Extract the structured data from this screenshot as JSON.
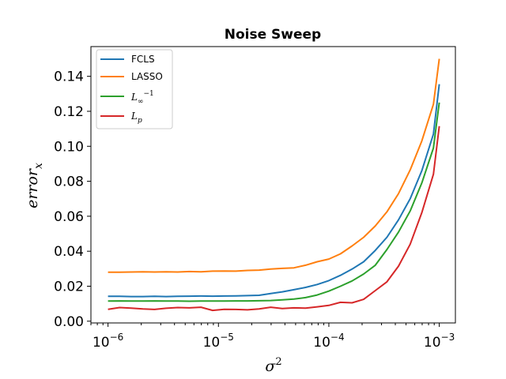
{
  "chart_data": {
    "type": "line",
    "title": "Noise Sweep",
    "xlabel": "σ²",
    "ylabel": "error_x",
    "xscale": "log",
    "xlim": [
      7e-07,
      0.0014
    ],
    "ylim": [
      -0.001,
      0.157
    ],
    "x_ticks": [
      {
        "value": 1e-06,
        "base": "10",
        "exp": "−6"
      },
      {
        "value": 1e-05,
        "base": "10",
        "exp": "−5"
      },
      {
        "value": 0.0001,
        "base": "10",
        "exp": "−4"
      },
      {
        "value": 0.001,
        "base": "10",
        "exp": "−3"
      }
    ],
    "y_ticks": [
      {
        "value": 0.0,
        "label": "0.00"
      },
      {
        "value": 0.02,
        "label": "0.02"
      },
      {
        "value": 0.04,
        "label": "0.04"
      },
      {
        "value": 0.06,
        "label": "0.06"
      },
      {
        "value": 0.08,
        "label": "0.08"
      },
      {
        "value": 0.1,
        "label": "0.10"
      },
      {
        "value": 0.12,
        "label": "0.12"
      },
      {
        "value": 0.14,
        "label": "0.14"
      }
    ],
    "grid": false,
    "legend_position": "top-left",
    "x": [
      1e-06,
      1.274e-06,
      1.624e-06,
      2.069e-06,
      2.637e-06,
      3.36e-06,
      4.281e-06,
      5.456e-06,
      6.952e-06,
      8.859e-06,
      1.129e-05,
      1.438e-05,
      1.833e-05,
      2.336e-05,
      2.976e-05,
      3.793e-05,
      4.833e-05,
      6.158e-05,
      7.848e-05,
      0.0001,
      0.0001274,
      0.0001624,
      0.0002069,
      0.0002637,
      0.000336,
      0.0004281,
      0.0005456,
      0.0006952,
      0.0008859,
      0.001
    ],
    "series": [
      {
        "name": "FCLS",
        "color": "#1f77b4",
        "values": [
          0.0142,
          0.0142,
          0.0141,
          0.0141,
          0.0142,
          0.0141,
          0.0142,
          0.0143,
          0.0144,
          0.0143,
          0.0144,
          0.0145,
          0.0146,
          0.0148,
          0.0158,
          0.0168,
          0.018,
          0.0193,
          0.021,
          0.0232,
          0.0262,
          0.0298,
          0.034,
          0.0405,
          0.048,
          0.058,
          0.07,
          0.086,
          0.107,
          0.1355
        ]
      },
      {
        "name": "LASSO",
        "color": "#ff7f0e",
        "values": [
          0.028,
          0.028,
          0.0281,
          0.0282,
          0.0281,
          0.0282,
          0.0281,
          0.0284,
          0.0282,
          0.0286,
          0.0287,
          0.0286,
          0.029,
          0.0292,
          0.0298,
          0.0302,
          0.0305,
          0.032,
          0.034,
          0.0355,
          0.0385,
          0.043,
          0.048,
          0.0545,
          0.0625,
          0.073,
          0.0865,
          0.103,
          0.124,
          0.15
        ]
      },
      {
        "name": "L_∞^{-1}",
        "color": "#2ca02c",
        "values": [
          0.0115,
          0.0116,
          0.0115,
          0.0115,
          0.0116,
          0.0115,
          0.0115,
          0.0114,
          0.0115,
          0.0115,
          0.0115,
          0.0116,
          0.0116,
          0.0117,
          0.0118,
          0.0122,
          0.0127,
          0.0135,
          0.015,
          0.0172,
          0.02,
          0.023,
          0.027,
          0.032,
          0.041,
          0.051,
          0.063,
          0.079,
          0.099,
          0.125
        ]
      },
      {
        "name": "L_p",
        "color": "#d62728",
        "values": [
          0.0068,
          0.0078,
          0.0075,
          0.007,
          0.0067,
          0.0074,
          0.0078,
          0.0076,
          0.008,
          0.0062,
          0.0068,
          0.0067,
          0.0065,
          0.007,
          0.008,
          0.0072,
          0.0076,
          0.0075,
          0.0082,
          0.009,
          0.0108,
          0.0105,
          0.0125,
          0.0175,
          0.0225,
          0.0315,
          0.044,
          0.062,
          0.084,
          0.1115
        ]
      }
    ]
  }
}
